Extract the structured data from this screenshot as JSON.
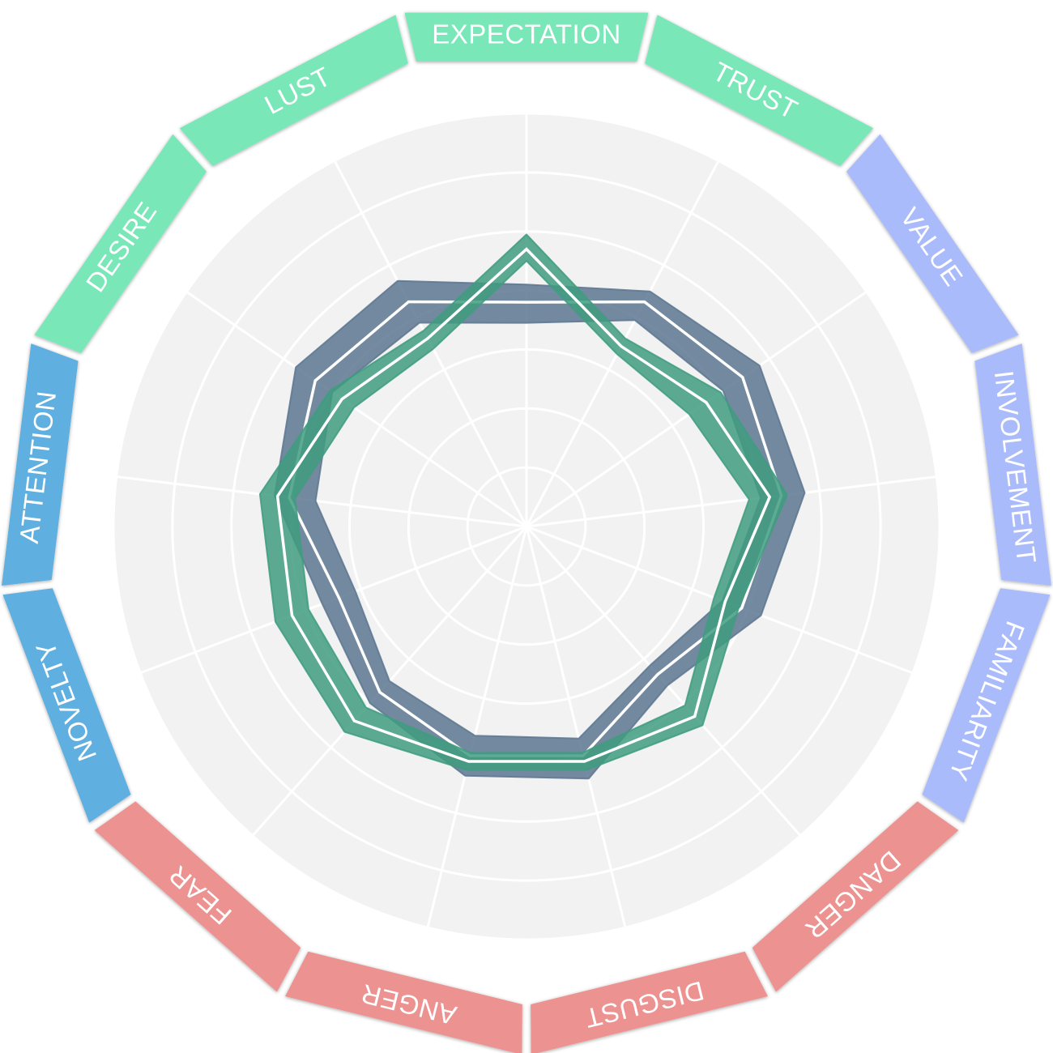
{
  "chart_data": {
    "type": "radar",
    "axes": [
      "EXPECTATION",
      "TRUST",
      "VALUE",
      "INVOLVEMENT",
      "FAMILIARITY",
      "DANGER",
      "DISGUST",
      "ANGER",
      "FEAR",
      "NOVELTY",
      "ATTENTION",
      "DESIRE",
      "LUST"
    ],
    "axis_groups": [
      {
        "axes": [
          "LUST",
          "EXPECTATION",
          "TRUST",
          "DESIRE"
        ],
        "color": "#7ae7b9"
      },
      {
        "axes": [
          "VALUE",
          "INVOLVEMENT",
          "FAMILIARITY"
        ],
        "color": "#aabbfb"
      },
      {
        "axes": [
          "DANGER",
          "DISGUST",
          "ANGER",
          "FEAR"
        ],
        "color": "#ec9391"
      },
      {
        "axes": [
          "NOVELTY",
          "ATTENTION"
        ],
        "color": "#5eafe0"
      }
    ],
    "rlim": [
      0,
      7
    ],
    "grid_rings": 7,
    "grid": true,
    "background": "#f2f2f2",
    "series": [
      {
        "color": "#5d7790",
        "upper": [
          4.1,
          4.5,
          4.8,
          4.75,
          4.25,
          3.6,
          4.4,
          4.35,
          4.0,
          3.7,
          4.3,
          4.75,
          4.7
        ],
        "mid": [
          3.8,
          4.3,
          4.45,
          4.35,
          3.9,
          3.35,
          4.0,
          4.0,
          3.75,
          3.4,
          4.05,
          4.35,
          4.3
        ],
        "lower": [
          3.45,
          3.95,
          4.05,
          4.0,
          3.55,
          3.15,
          3.7,
          3.65,
          3.5,
          3.1,
          3.6,
          4.0,
          3.9
        ]
      },
      {
        "color": "#3f9c7f",
        "upper": [
          4.95,
          3.6,
          4.0,
          4.45,
          3.85,
          4.5,
          4.25,
          4.25,
          4.65,
          4.55,
          4.55,
          4.05,
          3.75
        ],
        "mid": [
          4.7,
          3.45,
          3.7,
          4.15,
          3.6,
          4.3,
          4.1,
          4.1,
          4.4,
          4.25,
          4.25,
          3.8,
          3.6
        ],
        "lower": [
          4.5,
          3.3,
          3.35,
          3.8,
          3.4,
          4.05,
          3.95,
          3.95,
          4.1,
          3.95,
          3.95,
          3.55,
          3.4
        ]
      }
    ]
  }
}
